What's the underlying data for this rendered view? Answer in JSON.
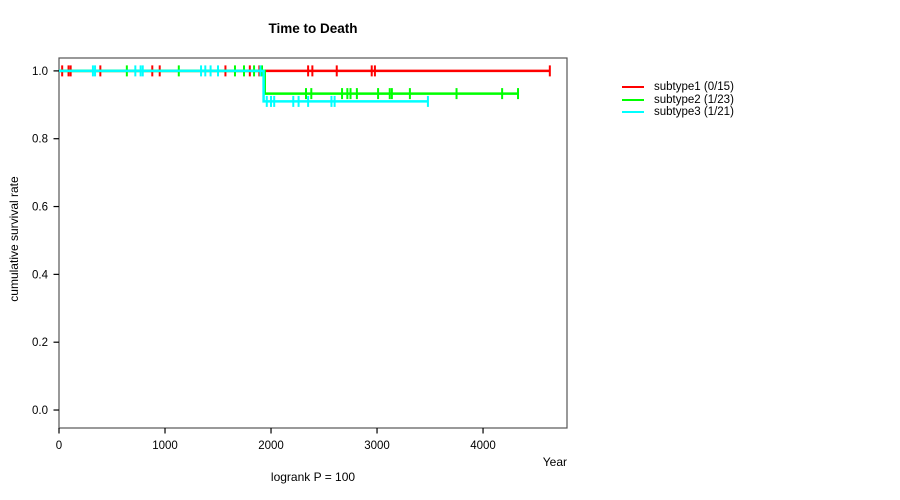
{
  "window": {
    "background": "#ffffff",
    "text_color": "#000000"
  },
  "chart_data": {
    "type": "line",
    "subtype": "kaplan-meier-step",
    "title": "Time to Death",
    "xlabel": "Year",
    "ylabel": "cumulative survival rate",
    "footnote": "logrank P = 100",
    "xlim": [
      0,
      4792
    ],
    "ylim": [
      -0.053,
      1.038
    ],
    "x_ticks": [
      0,
      1000,
      2000,
      3000,
      4000
    ],
    "y_ticks": [
      0.0,
      0.2,
      0.4,
      0.6,
      0.8,
      1.0
    ],
    "grid": false,
    "legend_position": "right-outside",
    "box_color": "#555555",
    "axis_color": "#000000",
    "series": [
      {
        "name": "subtype1 (0/15)",
        "color": "#ff0000",
        "events": "0/15",
        "points": [
          [
            0,
            1.0
          ],
          [
            4630,
            1.0
          ]
        ],
        "censor_times": [
          30,
          90,
          110,
          390,
          880,
          950,
          1570,
          1800,
          1890,
          2350,
          2390,
          2620,
          2950,
          2980,
          4630
        ]
      },
      {
        "name": "subtype2 (1/23)",
        "color": "#00ff00",
        "events": "1/23",
        "points": [
          [
            0,
            1.0
          ],
          [
            1940,
            1.0
          ],
          [
            1940,
            0.933
          ],
          [
            4330,
            0.933
          ]
        ],
        "censor_times": [
          640,
          1130,
          1660,
          1745,
          1840,
          1915,
          2330,
          2380,
          2670,
          2720,
          2750,
          2810,
          3010,
          3120,
          3140,
          3310,
          3750,
          4180,
          4330
        ]
      },
      {
        "name": "subtype3 (1/21)",
        "color": "#00ffff",
        "events": "1/21",
        "points": [
          [
            0,
            1.0
          ],
          [
            1930,
            1.0
          ],
          [
            1930,
            0.91
          ],
          [
            3480,
            0.91
          ]
        ],
        "censor_times": [
          320,
          340,
          720,
          770,
          790,
          1340,
          1380,
          1430,
          1500,
          1900,
          1960,
          2000,
          2030,
          2210,
          2260,
          2350,
          2570,
          2600,
          3480
        ]
      }
    ]
  }
}
